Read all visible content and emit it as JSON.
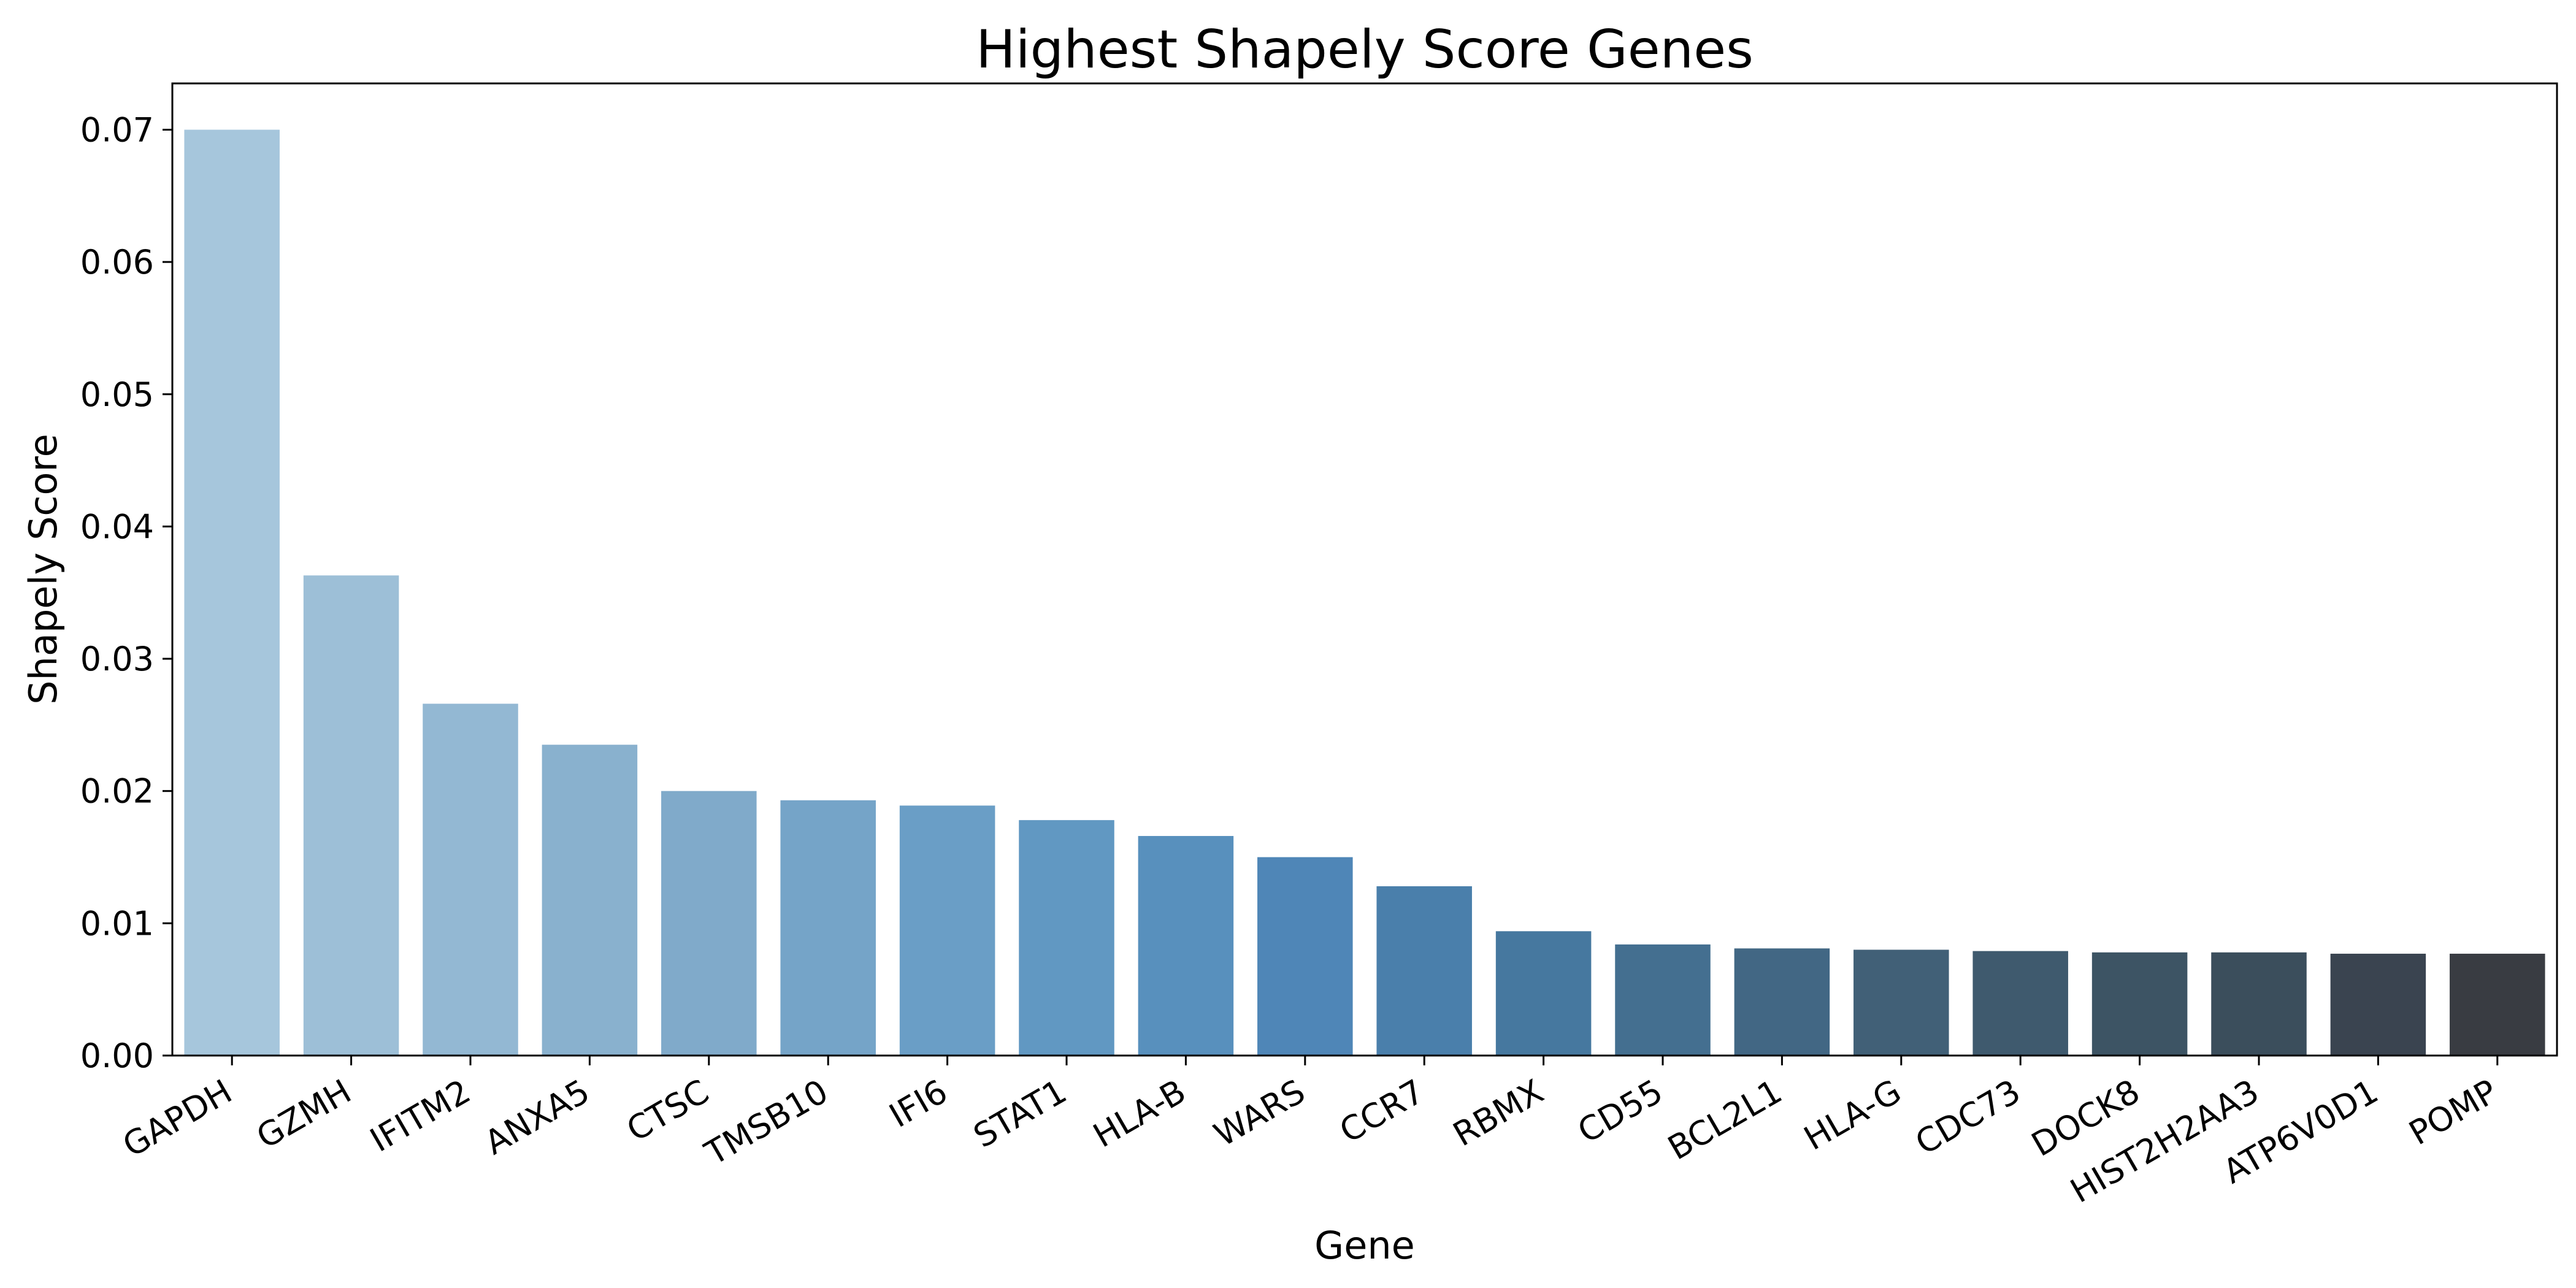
{
  "chart_data": {
    "type": "bar",
    "title": "Highest Shapely Score Genes",
    "xlabel": "Gene",
    "ylabel": "Shapely Score",
    "categories": [
      "GAPDH",
      "GZMH",
      "IFITM2",
      "ANXA5",
      "CTSC",
      "TMSB10",
      "IFI6",
      "STAT1",
      "HLA-B",
      "WARS",
      "CCR7",
      "RBMX",
      "CD55",
      "BCL2L1",
      "HLA-G",
      "CDC73",
      "DOCK8",
      "HIST2H2AA3",
      "ATP6V0D1",
      "POMP"
    ],
    "values": [
      0.07,
      0.0363,
      0.0266,
      0.0235,
      0.02,
      0.0193,
      0.0189,
      0.0178,
      0.0166,
      0.015,
      0.0128,
      0.0094,
      0.0084,
      0.0081,
      0.008,
      0.0079,
      0.0078,
      0.0078,
      0.0077,
      0.0077
    ],
    "colors": [
      "#a6c6dc",
      "#9dbfd7",
      "#93b8d3",
      "#89b1ce",
      "#80aaca",
      "#75a4c8",
      "#6a9ec6",
      "#6198c2",
      "#5890bd",
      "#4f86b7",
      "#4a7fab",
      "#46789f",
      "#446f90",
      "#426784",
      "#416077",
      "#3f5a6e",
      "#3d5464",
      "#3b4e5c",
      "#3a4450",
      "#393c42"
    ],
    "ylim": [
      0,
      0.0735
    ],
    "yticks": [
      "0.00",
      "0.01",
      "0.02",
      "0.03",
      "0.04",
      "0.05",
      "0.06",
      "0.07"
    ],
    "grid": false,
    "legend": false
  }
}
